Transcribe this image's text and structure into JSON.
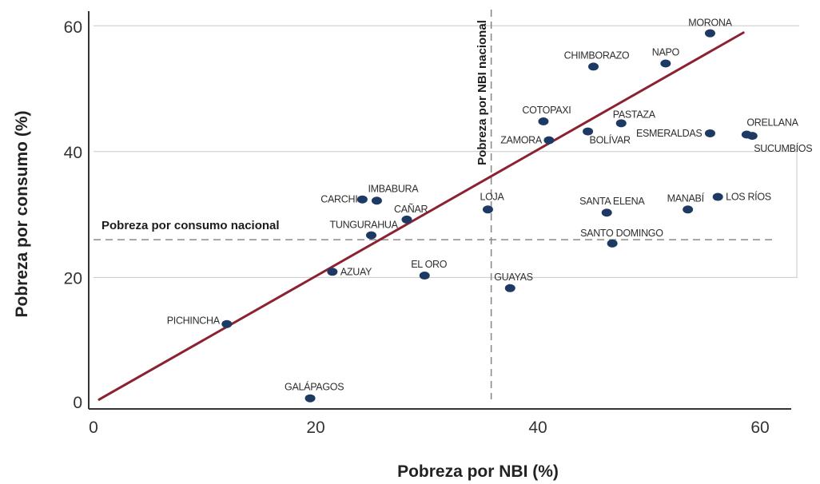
{
  "chart_data": {
    "type": "scatter",
    "xlabel": "Pobreza por NBI (%)",
    "ylabel": "Pobreza por consumo (%)",
    "xlim": [
      0,
      63
    ],
    "ylim": [
      0,
      62
    ],
    "x_ticks": [
      "0",
      "20",
      "40",
      "60"
    ],
    "y_ticks": [
      "0",
      "20",
      "40",
      "60"
    ],
    "grid": "horizontal",
    "reference_lines": {
      "vertical": {
        "label": "Pobreza por NBI nacional",
        "x": 35.8
      },
      "horizontal": {
        "label": "Pobreza por consumo nacional",
        "y": 26.0
      }
    },
    "trendline": {
      "x": [
        0.5,
        58.5
      ],
      "y": [
        0.6,
        58.9
      ]
    },
    "point_color": "#1c3a63",
    "line_color": "#8b2232",
    "points": [
      {
        "name": "MORONA",
        "x": 55.5,
        "y": 58.8
      },
      {
        "name": "NAPO",
        "x": 51.5,
        "y": 54.0
      },
      {
        "name": "CHIMBORAZO",
        "x": 45.0,
        "y": 53.5
      },
      {
        "name": "COTOPAXI",
        "x": 40.5,
        "y": 44.8
      },
      {
        "name": "PASTAZA",
        "x": 47.5,
        "y": 44.5
      },
      {
        "name": "ZAMORA",
        "x": 41.0,
        "y": 41.8
      },
      {
        "name": "BOLÍVAR",
        "x": 44.5,
        "y": 43.2
      },
      {
        "name": "ESMERALDAS",
        "x": 55.5,
        "y": 42.9
      },
      {
        "name": "ORELLANA",
        "x": 58.8,
        "y": 42.7
      },
      {
        "name": "SUCUMBÍOS",
        "x": 59.3,
        "y": 42.5
      },
      {
        "name": "IMBABURA",
        "x": 25.5,
        "y": 32.2
      },
      {
        "name": "CARCHI",
        "x": 24.2,
        "y": 32.4
      },
      {
        "name": "CAÑAR",
        "x": 28.2,
        "y": 29.2
      },
      {
        "name": "TUNGURAHUA",
        "x": 25.0,
        "y": 26.7
      },
      {
        "name": "LOJA",
        "x": 35.5,
        "y": 30.8
      },
      {
        "name": "SANTA ELENA",
        "x": 46.2,
        "y": 30.3
      },
      {
        "name": "MANABÍ",
        "x": 53.5,
        "y": 30.8
      },
      {
        "name": "LOS RÍOS",
        "x": 56.2,
        "y": 32.8
      },
      {
        "name": "SANTO DOMINGO",
        "x": 46.7,
        "y": 25.4
      },
      {
        "name": "AZUAY",
        "x": 21.5,
        "y": 20.9
      },
      {
        "name": "EL ORO",
        "x": 29.8,
        "y": 20.3
      },
      {
        "name": "GUAYAS",
        "x": 37.5,
        "y": 18.3
      },
      {
        "name": "PICHINCHA",
        "x": 12.0,
        "y": 12.6
      },
      {
        "name": "GALÁPAGOS",
        "x": 19.5,
        "y": 0.8
      }
    ]
  }
}
